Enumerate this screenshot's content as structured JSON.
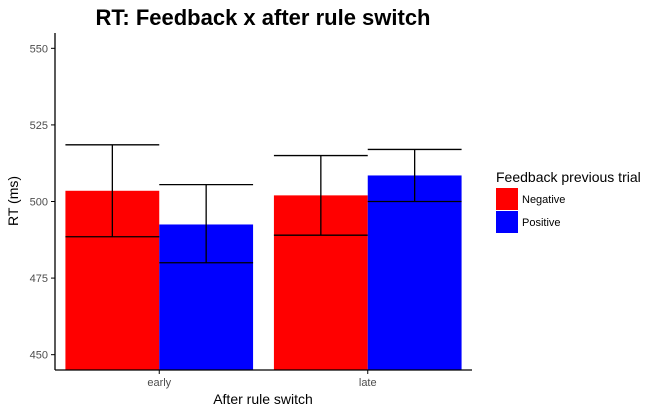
{
  "chart_data": {
    "type": "bar",
    "title": "RT: Feedback x after rule switch",
    "xlabel": "After rule switch",
    "ylabel": "RT (ms)",
    "categories": [
      "early",
      "late"
    ],
    "ylim": [
      445,
      555
    ],
    "yticks": [
      450,
      475,
      500,
      525,
      550
    ],
    "grid": false,
    "legend": {
      "title": "Feedback previous trial",
      "position": "right"
    },
    "series": [
      {
        "name": "Negative",
        "color": "#ff0000",
        "values": [
          503.5,
          502.0
        ],
        "error_low": [
          488.5,
          489.0
        ],
        "error_high": [
          518.5,
          515.0
        ]
      },
      {
        "name": "Positive",
        "color": "#0000ff",
        "values": [
          492.5,
          508.5
        ],
        "error_low": [
          480.0,
          500.0
        ],
        "error_high": [
          505.5,
          517.0
        ]
      }
    ]
  }
}
